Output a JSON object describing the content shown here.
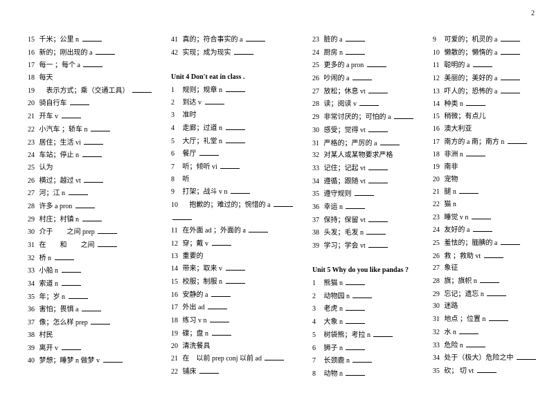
{
  "pageNumber": "2",
  "columns": [
    {
      "items": [
        {
          "num": "15",
          "text": "千米；公里",
          "pos": "n",
          "blank": true
        },
        {
          "num": "16",
          "text": "新的；刚出现的",
          "pos": "a",
          "blank": true
        },
        {
          "num": "17",
          "text": "每一 ；每个",
          "pos": "a",
          "blank": true
        },
        {
          "num": "18",
          "text": "每天",
          "pos": "",
          "blank": false
        },
        {
          "num": "19",
          "text": "　表示方式；乘（交通工具）",
          "pos": "",
          "blank": true
        },
        {
          "num": "20",
          "text": "骑自行车",
          "pos": "",
          "blank": true
        },
        {
          "num": "21",
          "text": "开车",
          "pos": "v",
          "blank": true
        },
        {
          "num": "22",
          "text": "小汽车 ；轿车",
          "pos": "n",
          "blank": true
        },
        {
          "num": "23",
          "text": "居住；生活",
          "pos": "vi",
          "blank": true
        },
        {
          "num": "24",
          "text": "车站；停止",
          "pos": "n",
          "blank": true
        },
        {
          "num": "25",
          "text": "认为",
          "pos": "",
          "blank": false
        },
        {
          "num": "26",
          "text": "横过；越过",
          "pos": "vt",
          "blank": true
        },
        {
          "num": "27",
          "text": "河；江",
          "pos": "n",
          "blank": true
        },
        {
          "num": "28",
          "text": "许多",
          "pos": "a  pron",
          "blank": true
        },
        {
          "num": "29",
          "text": "村庄；村镇",
          "pos": "n",
          "blank": true
        },
        {
          "num": "30",
          "text": "介于　　之间",
          "pos": "prep",
          "blank": true
        },
        {
          "num": "31",
          "text": "在　　和　　之间",
          "pos": "",
          "blank": true
        },
        {
          "num": "32",
          "text": "桥",
          "pos": "n",
          "blank": true
        },
        {
          "num": "33",
          "text": "小船",
          "pos": "n",
          "blank": true
        },
        {
          "num": "34",
          "text": "索道",
          "pos": "n",
          "blank": true
        },
        {
          "num": "35",
          "text": "年；岁",
          "pos": "n",
          "blank": true
        },
        {
          "num": "36",
          "text": "害怕；畏惧",
          "pos": "a",
          "blank": true
        },
        {
          "num": "37",
          "text": "像；怎么样",
          "pos": "prep",
          "blank": true
        },
        {
          "num": "38",
          "text": "村民",
          "pos": "",
          "blank": false
        },
        {
          "num": "39",
          "text": "离开",
          "pos": "v",
          "blank": true
        },
        {
          "num": "40",
          "text": "梦想；睡梦  n 做梦",
          "pos": "v",
          "blank": true
        }
      ]
    },
    {
      "items": [
        {
          "num": "41",
          "text": "真的；符合事实的",
          "pos": " a",
          "blank": true
        },
        {
          "num": "42",
          "text": "实现；成为现实",
          "pos": "",
          "blank": true
        },
        {
          "num": "",
          "text": "",
          "pos": "",
          "blank": false,
          "spacer": true
        },
        {
          "num": "",
          "text": "Unit 4 Don't eat in class .",
          "pos": "",
          "blank": false,
          "unit": true
        },
        {
          "num": "1",
          "text": "规则；规章",
          "pos": "n",
          "blank": true
        },
        {
          "num": "2",
          "text": "到达",
          "pos": "v",
          "blank": true
        },
        {
          "num": "3",
          "text": "准时",
          "pos": "",
          "blank": false
        },
        {
          "num": "4",
          "text": "走廊；过道",
          "pos": "n",
          "blank": true
        },
        {
          "num": "5",
          "text": "大厅；礼堂",
          "pos": "n",
          "blank": true
        },
        {
          "num": "6",
          "text": "餐厅",
          "pos": "",
          "blank": true
        },
        {
          "num": "7",
          "text": "听；倾听",
          "pos": "vi",
          "blank": true
        },
        {
          "num": "8",
          "text": "听",
          "pos": "",
          "blank": false
        },
        {
          "num": "9",
          "text": "打架；战斗",
          "pos": " v   n",
          "blank": true
        },
        {
          "num": "10",
          "text": "　抱歉的；难过的；惋惜的",
          "pos": "  a",
          "blank": true
        },
        {
          "num": "",
          "text": "",
          "pos": "",
          "blank": true,
          "numpad": true
        },
        {
          "num": "11",
          "text": "在外面 ad ；外面的",
          "pos": "a",
          "blank": true
        },
        {
          "num": "12",
          "text": "穿；戴",
          "pos": "v",
          "blank": true
        },
        {
          "num": "13",
          "text": "重要的",
          "pos": "",
          "blank": false
        },
        {
          "num": "14",
          "text": "带来；取来",
          "pos": "v",
          "blank": true
        },
        {
          "num": "15",
          "text": "校服；制服",
          "pos": "n",
          "blank": true
        },
        {
          "num": "16",
          "text": "安静的",
          "pos": "a",
          "blank": true
        },
        {
          "num": "17",
          "text": "外出",
          "pos": "ad",
          "blank": true
        },
        {
          "num": "18",
          "text": "练习",
          "pos": "v  n",
          "blank": true
        },
        {
          "num": "19",
          "text": "碟；盘",
          "pos": "n",
          "blank": true
        },
        {
          "num": "20",
          "text": "清洗餐具",
          "pos": "",
          "blank": false
        },
        {
          "num": "21",
          "text": "在　以前 prep conj 以前",
          "pos": "ad",
          "blank": true
        },
        {
          "num": "22",
          "text": "铺床",
          "pos": "",
          "blank": true
        }
      ]
    },
    {
      "items": [
        {
          "num": "23",
          "text": "脏的",
          "pos": "a",
          "blank": true
        },
        {
          "num": "24",
          "text": "厨房",
          "pos": "n",
          "blank": true
        },
        {
          "num": "25",
          "text": "更多的",
          "pos": "a    pron",
          "blank": true
        },
        {
          "num": "26",
          "text": "吵闹的",
          "pos": " a",
          "blank": true
        },
        {
          "num": "27",
          "text": "放松；休息",
          "pos": "vt",
          "blank": true
        },
        {
          "num": "28",
          "text": "读；阅读",
          "pos": "v",
          "blank": true
        },
        {
          "num": "29",
          "text": "非常讨厌的；可怕的",
          "pos": "a",
          "blank": true
        },
        {
          "num": "30",
          "text": "感受；觉得",
          "pos": "vt",
          "blank": true
        },
        {
          "num": "31",
          "text": "严格的；严厉的",
          "pos": "a",
          "blank": true
        },
        {
          "num": "32",
          "text": "对某人或某物要求严格",
          "pos": "",
          "blank": false
        },
        {
          "num": "33",
          "text": "记住；记起",
          "pos": "vt",
          "blank": true
        },
        {
          "num": "34",
          "text": "遵循；跟随",
          "pos": "vt",
          "blank": true
        },
        {
          "num": "35",
          "text": "遵守规则",
          "pos": "",
          "blank": true
        },
        {
          "num": "36",
          "text": "幸运",
          "pos": "n",
          "blank": true
        },
        {
          "num": "37",
          "text": "保持；保留",
          "pos": "vt",
          "blank": true
        },
        {
          "num": "38",
          "text": "头发；毛发",
          "pos": "n",
          "blank": true
        },
        {
          "num": "39",
          "text": "学习；学会",
          "pos": "vt",
          "blank": true
        },
        {
          "num": "",
          "text": "",
          "pos": "",
          "blank": false,
          "spacer": true
        },
        {
          "num": "",
          "text": "Unit 5 Why do you like pandas ?",
          "pos": "",
          "blank": false,
          "unit": true
        },
        {
          "num": "1",
          "text": "熊猫",
          "pos": "n",
          "blank": true
        },
        {
          "num": "2",
          "text": "动物园",
          "pos": "n",
          "blank": true
        },
        {
          "num": "3",
          "text": "老虎",
          "pos": "n",
          "blank": true
        },
        {
          "num": "4",
          "text": "大象",
          "pos": "n",
          "blank": true
        },
        {
          "num": "5",
          "text": "树袋熊；考拉",
          "pos": "n",
          "blank": true
        },
        {
          "num": "6",
          "text": "狮子",
          "pos": "n",
          "blank": true
        },
        {
          "num": "7",
          "text": "长颈鹿",
          "pos": "n",
          "blank": true
        },
        {
          "num": "8",
          "text": "动物",
          "pos": "n",
          "blank": true
        }
      ]
    },
    {
      "items": [
        {
          "num": "9",
          "text": "可爱的；机灵的",
          "pos": "a",
          "blank": true
        },
        {
          "num": "10",
          "text": "懒散的；懒惰的",
          "pos": "a",
          "blank": true
        },
        {
          "num": "11",
          "text": "聪明的",
          "pos": "a",
          "blank": true
        },
        {
          "num": "12",
          "text": "美丽的；美好的",
          "pos": "a",
          "blank": true
        },
        {
          "num": "13",
          "text": "吓人的；恐怖的",
          "pos": "a",
          "blank": true
        },
        {
          "num": "14",
          "text": "种类",
          "pos": "n",
          "blank": true
        },
        {
          "num": "15",
          "text": "稍微；有点儿",
          "pos": "",
          "blank": false
        },
        {
          "num": "16",
          "text": "澳大利亚",
          "pos": "",
          "blank": false
        },
        {
          "num": "17",
          "text": "南方的 a 南；南方",
          "pos": "n",
          "blank": true
        },
        {
          "num": "18",
          "text": "非洲",
          "pos": "n",
          "blank": true
        },
        {
          "num": "19",
          "text": "南非",
          "pos": "",
          "blank": false
        },
        {
          "num": "20",
          "text": "宠物",
          "pos": "",
          "blank": false
        },
        {
          "num": "21",
          "text": "腿",
          "pos": "n",
          "blank": true
        },
        {
          "num": "22",
          "text": "猫",
          "pos": "n",
          "blank": false
        },
        {
          "num": "23",
          "text": "睡觉",
          "pos": " v  n",
          "blank": true
        },
        {
          "num": "24",
          "text": "友好的",
          "pos": "a",
          "blank": true
        },
        {
          "num": "25",
          "text": "羞怯的；腼腆的",
          "pos": "a",
          "blank": true
        },
        {
          "num": "26",
          "text": "救 ；救助",
          "pos": "vt",
          "blank": true
        },
        {
          "num": "27",
          "text": "象征",
          "pos": "",
          "blank": false
        },
        {
          "num": "28",
          "text": "旗；旗帜",
          "pos": "n",
          "blank": true
        },
        {
          "num": "29",
          "text": "忘记；遗忘",
          "pos": " n",
          "blank": true
        },
        {
          "num": "30",
          "text": "迷路",
          "pos": "",
          "blank": false
        },
        {
          "num": "31",
          "text": "地点 ；位置",
          "pos": "n",
          "blank": true
        },
        {
          "num": "32",
          "text": "水",
          "pos": "n",
          "blank": true
        },
        {
          "num": "33",
          "text": "危险",
          "pos": "n",
          "blank": true
        },
        {
          "num": "34",
          "text": "处于（极大）危险之中",
          "pos": "",
          "blank": true
        },
        {
          "num": "35",
          "text": "砍；  切",
          "pos": "vt",
          "blank": true
        }
      ]
    }
  ],
  "style": {
    "fontSize": 10,
    "textColor": "#000000",
    "bgColor": "#ffffff"
  }
}
